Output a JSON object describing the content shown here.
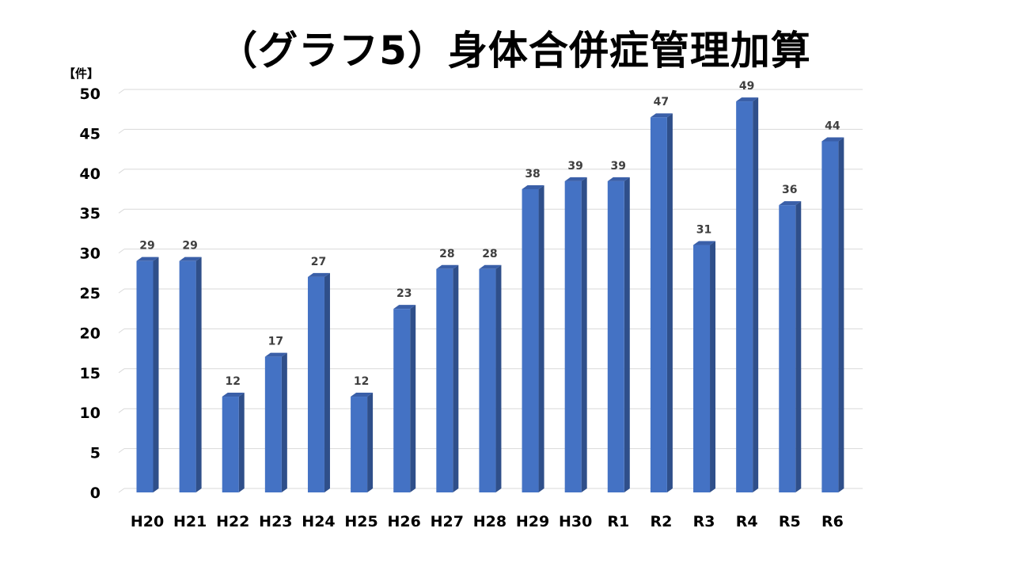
{
  "chart_data": {
    "type": "bar",
    "title": "（グラフ5）身体合併症管理加算",
    "unit_label": "【件】",
    "categories": [
      "H20",
      "H21",
      "H22",
      "H23",
      "H24",
      "H25",
      "H26",
      "H27",
      "H28",
      "H29",
      "H30",
      "R1",
      "R2",
      "R3",
      "R4",
      "R5",
      "R6"
    ],
    "series": [
      {
        "values": [
          29,
          29,
          12,
          17,
          27,
          12,
          23,
          28,
          28,
          38,
          39,
          39,
          47,
          31,
          49,
          36,
          44
        ]
      }
    ],
    "ylim": [
      0,
      50
    ],
    "y_ticks": [
      0,
      5,
      10,
      15,
      20,
      25,
      30,
      35,
      40,
      45,
      50
    ],
    "grid": true,
    "data_labels": true,
    "bar_style": "3d",
    "colors": {
      "bar_front": "#4472C4",
      "bar_side": "#2F4F8A",
      "bar_top": "#3A5FA8",
      "grid": "#D9D9D9",
      "data_label": "#404040"
    }
  }
}
